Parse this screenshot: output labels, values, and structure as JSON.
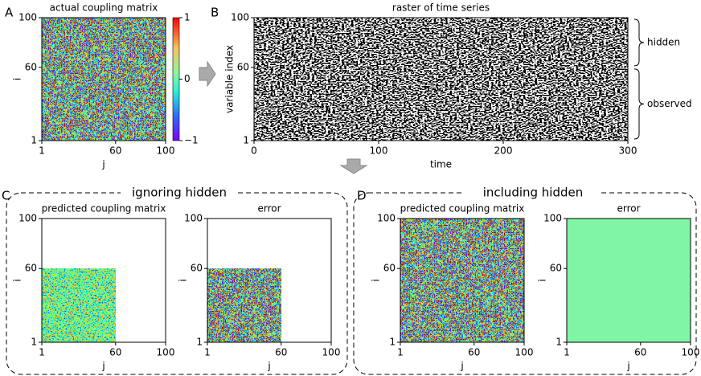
{
  "panel_labels": [
    "A",
    "B",
    "C",
    "D"
  ],
  "groups": [
    "ignoring hidden",
    "including hidden"
  ],
  "chart_data": [
    {
      "type": "heatmap",
      "title": "actual coupling matrix",
      "xlabel": "j",
      "ylabel": "i",
      "texture": "full",
      "xlim": [
        1,
        100
      ],
      "ylim": [
        1,
        100
      ],
      "xticks": [
        1,
        60,
        100
      ],
      "yticks": [
        1,
        60,
        100
      ],
      "colorbar": {
        "lim": [
          -1,
          1
        ],
        "ticks": [
          1,
          0,
          {
            "value": -1,
            "label": "−1"
          }
        ]
      }
    },
    {
      "type": "raster",
      "title": "raster of time series",
      "xlabel": "time",
      "ylabel": "variable index",
      "xlim": [
        0,
        300
      ],
      "ylim": [
        1,
        100
      ],
      "xticks": [
        0,
        100,
        200,
        300
      ],
      "yticks": [
        1,
        60,
        100
      ],
      "brackets": [
        {
          "label": "hidden",
          "range": [
            60,
            100
          ]
        },
        {
          "label": "observed",
          "range": [
            1,
            60
          ]
        }
      ]
    },
    {
      "type": "heatmap",
      "title": "predicted coupling matrix",
      "xlabel": "j",
      "ylabel": "i",
      "texture": "faint",
      "xlim": [
        1,
        100
      ],
      "ylim": [
        1,
        100
      ],
      "filled_xlim": [
        1,
        60
      ],
      "filled_ylim": [
        1,
        60
      ],
      "xticks": [
        1,
        60,
        100
      ],
      "yticks": [
        1,
        60,
        100
      ]
    },
    {
      "type": "heatmap",
      "title": "error",
      "xlabel": "j",
      "ylabel": "i",
      "texture": "full",
      "xlim": [
        1,
        100
      ],
      "ylim": [
        1,
        100
      ],
      "filled_xlim": [
        1,
        60
      ],
      "filled_ylim": [
        1,
        60
      ],
      "xticks": [
        1,
        60,
        100
      ],
      "yticks": [
        1,
        60,
        100
      ]
    },
    {
      "type": "heatmap",
      "title": "predicted coupling matrix",
      "xlabel": "j",
      "ylabel": "i",
      "texture": "full",
      "xlim": [
        1,
        100
      ],
      "ylim": [
        1,
        100
      ],
      "xticks": [
        1,
        60,
        100
      ],
      "yticks": [
        1,
        60,
        100
      ]
    },
    {
      "type": "heatmap",
      "title": "error",
      "xlabel": "j",
      "ylabel": "i",
      "texture": "flat",
      "xlim": [
        1,
        100
      ],
      "ylim": [
        1,
        100
      ],
      "xticks": [
        1,
        60,
        100
      ],
      "yticks": [
        1,
        60,
        100
      ]
    }
  ]
}
